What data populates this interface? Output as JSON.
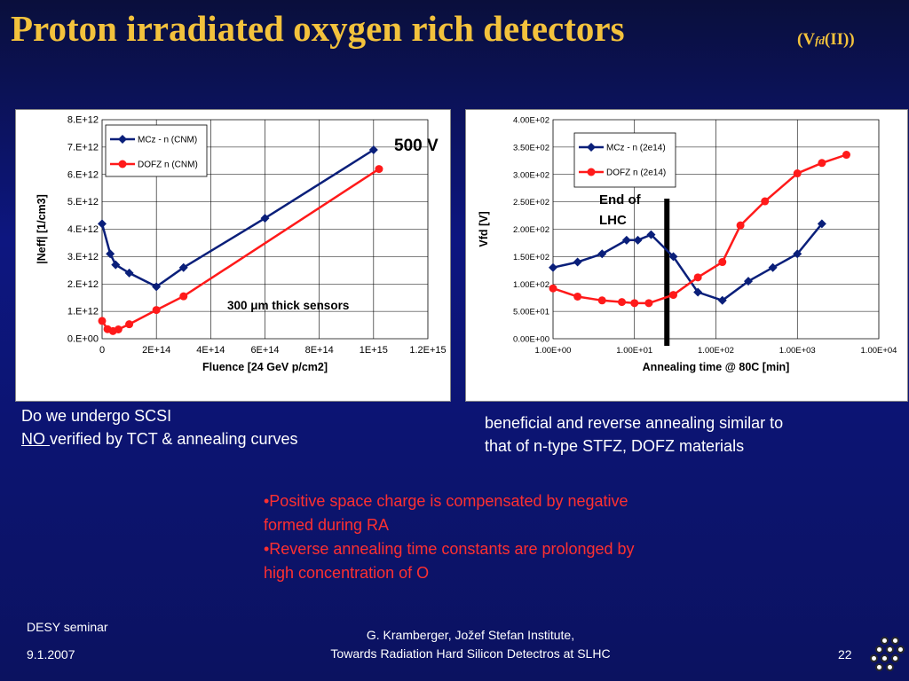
{
  "slide": {
    "title": "Proton irradiated oxygen rich detectors",
    "title_suffix_open": "(V",
    "title_suffix_sub": "fd",
    "title_suffix_close": "(II))",
    "question": "Do we undergo SCSI",
    "answer_no": "NO ",
    "answer_rest": "verified by TCT & annealing curves",
    "right_text_1": "beneficial and reverse annealing similar to",
    "right_text_2": "that of n-type STFZ, DOFZ materials",
    "bullet_1_a": "•Positive space charge is compensated by negative",
    "bullet_1_b": "formed during RA",
    "bullet_2_a": "•Reverse annealing time constants are prolonged by",
    "bullet_2_b": "high concentration of O",
    "footer_left_1": "DESY seminar",
    "footer_left_2": "9.1.2007",
    "footer_center_1": "G. Kramberger, Jožef Stefan Institute,",
    "footer_center_2": "Towards Radiation Hard Silicon Detectros at SLHC",
    "page_number": "22"
  },
  "colors": {
    "title": "#f3c23c",
    "series_blue": "#0a1f7a",
    "series_red": "#ff1a1a",
    "bullet_red": "#ff3030"
  },
  "chart_data": [
    {
      "type": "line",
      "xlabel": "Fluence [24 GeV p/cm2]",
      "ylabel": "|Neff| [1/cm3]",
      "xlim": [
        0,
        1200000000000000.0
      ],
      "ylim": [
        0,
        8000000000000.0
      ],
      "x_ticks": [
        "0",
        "2E+14",
        "4E+14",
        "6E+14",
        "8E+14",
        "1E+15",
        "1.2E+15"
      ],
      "y_ticks": [
        "0.E+00",
        "1.E+12",
        "2.E+12",
        "3.E+12",
        "4.E+12",
        "5.E+12",
        "6.E+12",
        "7.E+12",
        "8.E+12"
      ],
      "grid": true,
      "legend": "top-left",
      "annotation_sensors": "300 μm thick sensors",
      "annotation_voltage": "500 V",
      "series": [
        {
          "name": "MCz - n (CNM)",
          "color": "#0a1f7a",
          "marker": "diamond",
          "x": [
            0,
            30000000000000.0,
            50000000000000.0,
            100000000000000.0,
            200000000000000.0,
            300000000000000.0,
            600000000000000.0,
            1000000000000000.0
          ],
          "y": [
            4200000000000.0,
            3100000000000.0,
            2700000000000.0,
            2400000000000.0,
            1900000000000.0,
            2600000000000.0,
            4400000000000.0,
            6900000000000.0
          ]
        },
        {
          "name": "DOFZ n (CNM)",
          "color": "#ff1a1a",
          "marker": "circle",
          "x": [
            0,
            20000000000000.0,
            40000000000000.0,
            60000000000000.0,
            100000000000000.0,
            200000000000000.0,
            300000000000000.0,
            1020000000000000.0
          ],
          "y": [
            650000000000.0,
            350000000000.0,
            280000000000.0,
            340000000000.0,
            530000000000.0,
            1050000000000.0,
            1550000000000.0,
            6200000000000.0
          ]
        }
      ]
    },
    {
      "type": "line",
      "xlabel": "Annealing time @ 80C [min]",
      "ylabel": "Vfd [V]",
      "xscale": "log",
      "xlim": [
        1,
        10000
      ],
      "ylim": [
        0,
        400
      ],
      "x_ticks": [
        "1.00E+00",
        "1.00E+01",
        "1.00E+02",
        "1.00E+03",
        "1.00E+04"
      ],
      "y_ticks": [
        "0.00E+00",
        "5.00E+01",
        "1.00E+02",
        "1.50E+02",
        "2.00E+02",
        "2.50E+02",
        "3.00E+02",
        "3.50E+02",
        "4.00E+02"
      ],
      "grid": true,
      "legend": "top-left",
      "annotation_end": "End of LHC",
      "annotation_end_x": 25,
      "series": [
        {
          "name": "MCz - n (2e14)",
          "color": "#0a1f7a",
          "marker": "diamond",
          "x": [
            1,
            2,
            4,
            8,
            11,
            16,
            30,
            60,
            120,
            250,
            500,
            1000,
            2000
          ],
          "y": [
            130,
            140,
            155,
            180,
            180,
            190,
            150,
            85,
            70,
            105,
            130,
            155,
            210
          ]
        },
        {
          "name": "DOFZ n (2e14)",
          "color": "#ff1a1a",
          "marker": "circle",
          "x": [
            1,
            2,
            4,
            7,
            10,
            15,
            30,
            60,
            120,
            200,
            400,
            1000,
            2000,
            4000
          ],
          "y": [
            92,
            77,
            70,
            67,
            65,
            65,
            80,
            112,
            140,
            207,
            251,
            302,
            321,
            336
          ]
        }
      ]
    }
  ]
}
